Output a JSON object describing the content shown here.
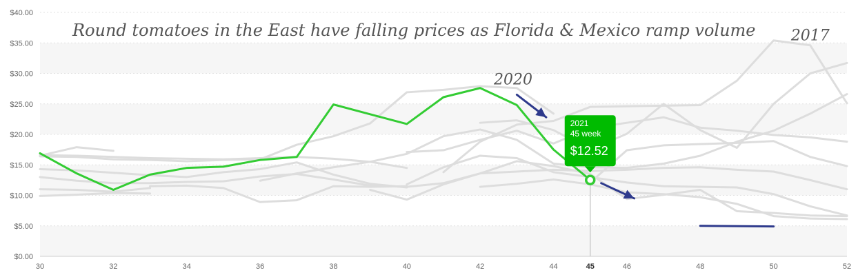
{
  "chart_data": {
    "type": "line",
    "title": "Round tomatoes in the East have falling prices as Florida & Mexico ramp volume",
    "x_ticks": [
      "30",
      "32",
      "34",
      "36",
      "38",
      "40",
      "42",
      "44",
      "45",
      "46",
      "48",
      "50",
      "52"
    ],
    "y_ticks": [
      "$0.00",
      "$5.00",
      "$10.00",
      "$15.00",
      "$20.00",
      "$25.00",
      "$30.00",
      "$35.00",
      "$40.00"
    ],
    "xlim": [
      30,
      52
    ],
    "ylim": [
      0,
      40
    ],
    "grid": "horizontal dashed with alternating bands",
    "highlight_series": {
      "name": "2021",
      "color": "#33cc33",
      "x": [
        30,
        31,
        32,
        33,
        34,
        35,
        36,
        37,
        38,
        39,
        40,
        41,
        42,
        43,
        44,
        45
      ],
      "y": [
        16.9,
        13.6,
        10.9,
        13.4,
        14.5,
        14.7,
        15.8,
        16.3,
        24.9,
        23.3,
        21.7,
        26.1,
        27.6,
        24.8,
        17.5,
        12.52
      ]
    },
    "background_series": [
      {
        "x": [
          30,
          31,
          32
        ],
        "y": [
          16.5,
          17.9,
          17.3
        ]
      },
      {
        "x": [
          30,
          31,
          32,
          33,
          34,
          35,
          36,
          37,
          38,
          39,
          40
        ],
        "y": [
          16.6,
          16.5,
          16.3,
          16.1,
          16.0,
          15.9,
          16.1,
          16.3,
          16.0,
          15.5,
          14.5
        ]
      },
      {
        "x": [
          30,
          31,
          32,
          33,
          34,
          35,
          36,
          37,
          38,
          39,
          40,
          41,
          42,
          43,
          44
        ],
        "y": [
          16.4,
          16.3,
          15.9,
          15.8,
          15.6,
          15.8,
          15.9,
          18.3,
          19.7,
          21.8,
          26.9,
          27.3,
          27.9,
          27.6,
          23.4
        ]
      },
      {
        "x": [
          30,
          31,
          32,
          33,
          34,
          35,
          36,
          37,
          38,
          39,
          40
        ],
        "y": [
          14.3,
          14.1,
          13.7,
          13.3,
          13.0,
          13.8,
          14.3,
          15.4,
          13.4,
          11.9,
          11.3
        ]
      },
      {
        "x": [
          30,
          31,
          32,
          33,
          34,
          35,
          36,
          37,
          38,
          39,
          40,
          41,
          42,
          43,
          44,
          45,
          46,
          47,
          48,
          49,
          50,
          51,
          52
        ],
        "y": [
          13.0,
          12.4,
          12.0,
          12.0,
          12.2,
          12.3,
          13.1,
          13.5,
          12.6,
          11.6,
          11.4,
          12.0,
          13.6,
          13.9,
          14.2,
          14.0,
          14.2,
          14.5,
          14.6,
          14.2,
          13.9,
          12.5,
          11.0
        ]
      },
      {
        "x": [
          30,
          31,
          32,
          33
        ],
        "y": [
          11.0,
          10.9,
          10.6,
          11.2
        ]
      },
      {
        "x": [
          30,
          31,
          32,
          33
        ],
        "y": [
          9.9,
          10.1,
          10.4,
          10.3
        ]
      },
      {
        "x": [
          33,
          34,
          35,
          36,
          37,
          38,
          39,
          40
        ],
        "y": [
          11.5,
          11.6,
          11.2,
          8.9,
          9.2,
          11.5,
          11.4,
          11.5
        ]
      },
      {
        "x": [
          36,
          37,
          38,
          39,
          40,
          41,
          42,
          43,
          44,
          45,
          46,
          47,
          48,
          49,
          50,
          51,
          52
        ],
        "y": [
          12.4,
          13.6,
          14.6,
          15.5,
          16.8,
          19.7,
          20.8,
          19.1,
          15.2,
          14.6,
          14.5,
          15.2,
          16.5,
          18.8,
          20.6,
          23.4,
          26.6
        ]
      },
      {
        "x": [
          39,
          40,
          41,
          42,
          43,
          44,
          45,
          46,
          47,
          48,
          49,
          50,
          51,
          52
        ],
        "y": [
          10.9,
          9.3,
          11.8,
          13.6,
          15.6,
          14.8,
          13.5,
          9.4,
          10.1,
          10.9,
          7.4,
          7.1,
          6.7,
          6.6
        ]
      },
      {
        "x": [
          40,
          41,
          42,
          43,
          44,
          45,
          46,
          47,
          48,
          49,
          50,
          51,
          52
        ],
        "y": [
          11.8,
          14.6,
          16.5,
          16.1,
          13.8,
          13.0,
          12.1,
          11.5,
          11.4,
          11.3,
          10.2,
          8.2,
          6.7
        ]
      },
      {
        "x": [
          40,
          41,
          42,
          43,
          44,
          45,
          46,
          47,
          48,
          49,
          50,
          51,
          52
        ],
        "y": [
          17.1,
          17.4,
          19.1,
          20.6,
          18.5,
          21.0,
          21.9,
          22.8,
          21.1,
          20.6,
          19.9,
          19.5,
          18.8
        ]
      },
      {
        "x": [
          41,
          42,
          43,
          44,
          45,
          46,
          47,
          48,
          49,
          50,
          51,
          52
        ],
        "y": [
          13.8,
          18.8,
          21.6,
          22.2,
          24.5,
          24.6,
          24.7,
          24.8,
          28.8,
          35.4,
          34.6,
          25.1
        ]
      },
      {
        "x": [
          42,
          43,
          44,
          45,
          46,
          47,
          48,
          49,
          50,
          51,
          52
        ],
        "y": [
          21.9,
          22.3,
          20.7,
          17.5,
          20.1,
          25.0,
          20.7,
          17.8,
          25.0,
          30.0,
          31.7
        ]
      },
      {
        "x": [
          42,
          43,
          44,
          45,
          46,
          47,
          48,
          49,
          50,
          51,
          52
        ],
        "y": [
          11.4,
          11.9,
          12.6,
          11.8,
          10.5,
          10.2,
          9.7,
          8.6,
          6.6,
          6.2,
          6.1
        ]
      },
      {
        "x": [
          45,
          46,
          47,
          48,
          49,
          50,
          51,
          52
        ],
        "y": [
          12.1,
          17.4,
          18.2,
          18.4,
          18.6,
          18.9,
          16.3,
          14.8
        ]
      }
    ],
    "tooltip": {
      "year": "2021",
      "week_label": "45 week",
      "value": "$12.52",
      "x": 45,
      "y": 12.52,
      "color": "#00bb00"
    },
    "annotations": [
      {
        "text": "2020",
        "x": 42.9,
        "y": 28.2
      },
      {
        "text": "2017",
        "x": 51.0,
        "y": 35.4
      }
    ],
    "annotation_arrows": [
      {
        "from": [
          43.0,
          26.5
        ],
        "to": [
          43.8,
          22.8
        ]
      },
      {
        "from": [
          45.3,
          12.0
        ],
        "to": [
          46.2,
          9.5
        ]
      }
    ],
    "annotation_line": {
      "x": [
        48,
        50
      ],
      "y": [
        5.0,
        4.9
      ]
    },
    "annotation_color": "#2e3a8c"
  }
}
